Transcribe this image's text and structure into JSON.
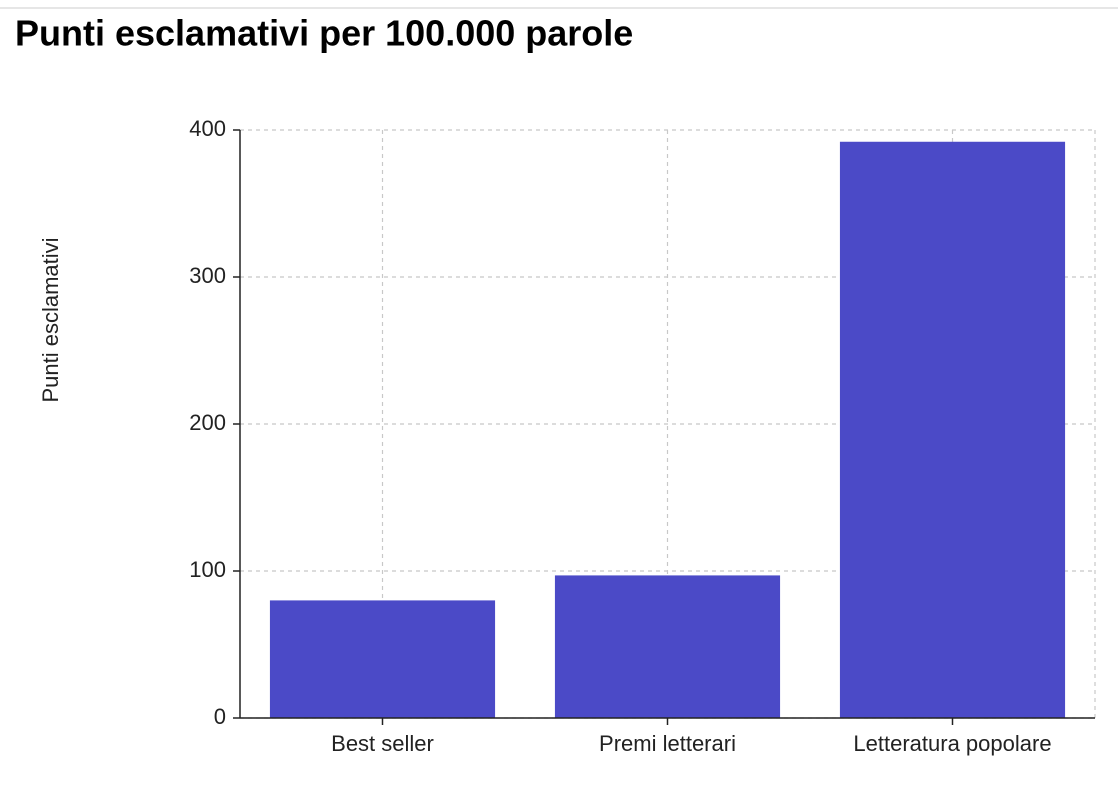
{
  "chart_data": {
    "type": "bar",
    "title": "Punti esclamativi per 100.000 parole",
    "y_label": "Punti esclamativi",
    "categories": [
      "Best seller",
      "Premi letterari",
      "Letteratura popolare"
    ],
    "values": [
      80,
      97,
      392
    ],
    "color": "#4b4ac7",
    "ylim": [
      0,
      400
    ],
    "yticks": [
      0,
      100,
      200,
      300,
      400
    ],
    "grid": true
  }
}
